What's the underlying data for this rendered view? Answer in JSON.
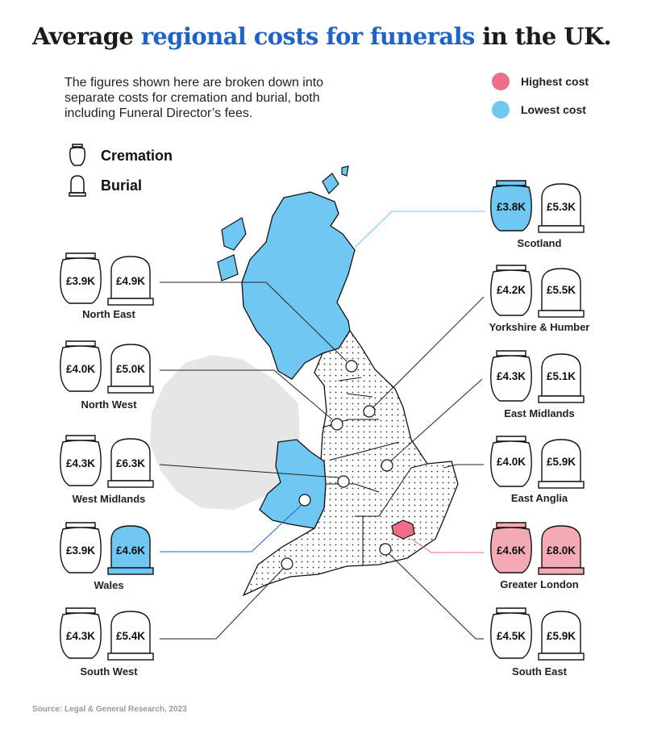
{
  "title": {
    "part1": "Average ",
    "highlight": "regional costs for funerals",
    "part2": " in the UK."
  },
  "intro": "The figures shown here are broken down into separate costs for cremation and burial, both including Funeral Director’s fees.",
  "legend": {
    "highest": {
      "label": "Highest cost",
      "color": "#ee6e89"
    },
    "lowest": {
      "label": "Lowest cost",
      "color": "#70c8f2"
    }
  },
  "key": {
    "cremation": "Cremation",
    "burial": "Burial"
  },
  "regions": {
    "north_east": {
      "name": "North East",
      "cremation": "£3.9K",
      "burial": "£4.9K"
    },
    "north_west": {
      "name": "North West",
      "cremation": "£4.0K",
      "burial": "£5.0K"
    },
    "west_midlands": {
      "name": "West Midlands",
      "cremation": "£4.3K",
      "burial": "£6.3K"
    },
    "wales": {
      "name": "Wales",
      "cremation": "£3.9K",
      "burial": "£4.6K"
    },
    "south_west": {
      "name": "South West",
      "cremation": "£4.3K",
      "burial": "£5.4K"
    },
    "scotland": {
      "name": "Scotland",
      "cremation": "£3.8K",
      "burial": "£5.3K"
    },
    "yorkshire": {
      "name": "Yorkshire & Humber",
      "cremation": "£4.2K",
      "burial": "£5.5K"
    },
    "east_midlands": {
      "name": "East Midlands",
      "cremation": "£4.3K",
      "burial": "£5.1K"
    },
    "east_anglia": {
      "name": "East Anglia",
      "cremation": "£4.0K",
      "burial": "£5.9K"
    },
    "greater_london": {
      "name": "Greater London",
      "cremation": "£4.6K",
      "burial": "£8.0K"
    },
    "south_east": {
      "name": "South East",
      "cremation": "£4.5K",
      "burial": "£5.9K"
    }
  },
  "colors": {
    "highlight_blue": "#70c8f2",
    "highlight_pink": "#f3aab4",
    "title_blue": "#1d63c9"
  },
  "source": "Source: Legal & General Research, 2023"
}
